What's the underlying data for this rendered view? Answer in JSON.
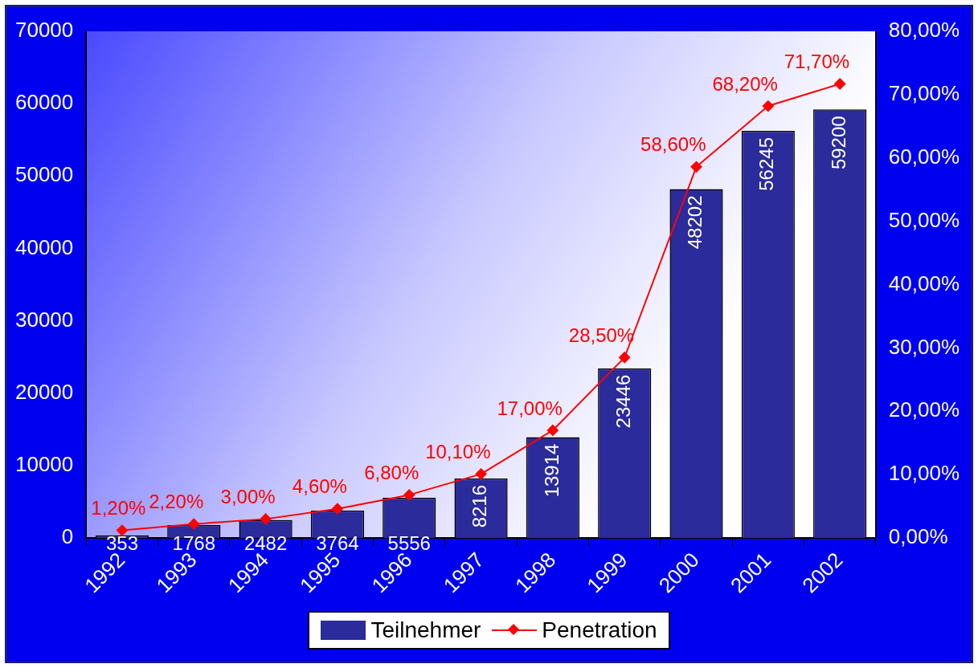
{
  "chart_data": {
    "type": "bar",
    "categories": [
      "1992",
      "1993",
      "1994",
      "1995",
      "1996",
      "1997",
      "1998",
      "1999",
      "2000",
      "2001",
      "2002"
    ],
    "series": [
      {
        "name": "Teilnehmer",
        "color": "#2b2b9c",
        "values": [
          353,
          1768,
          2482,
          3764,
          5556,
          8216,
          13914,
          23446,
          48202,
          56245,
          59200
        ],
        "value_labels": [
          "353",
          "1768",
          "2482",
          "3764",
          "5556",
          "8216",
          "13914",
          "23446",
          "48202",
          "56245",
          "59200"
        ]
      },
      {
        "name": "Penetration",
        "type": "line",
        "axis": "y2",
        "color": "#ff0000",
        "marker": "diamond",
        "values": [
          1.2,
          2.2,
          3.0,
          4.6,
          6.8,
          10.1,
          17.0,
          28.5,
          58.6,
          68.2,
          71.7
        ],
        "value_labels": [
          "1,20%",
          "2,20%",
          "3,00%",
          "4,60%",
          "6,80%",
          "10,10%",
          "17,00%",
          "28,50%",
          "58,60%",
          "68,20%",
          "71,70%"
        ]
      }
    ],
    "ylim": [
      0,
      70000
    ],
    "yticks": [
      0,
      10000,
      20000,
      30000,
      40000,
      50000,
      60000,
      70000
    ],
    "y2lim": [
      0,
      80
    ],
    "y2ticks": [
      {
        "value": 0,
        "label": "0,00%"
      },
      {
        "value": 10,
        "label": "10,00%"
      },
      {
        "value": 20,
        "label": "20,00%"
      },
      {
        "value": 30,
        "label": "30,00%"
      },
      {
        "value": 40,
        "label": "40,00%"
      },
      {
        "value": 50,
        "label": "50,00%"
      },
      {
        "value": 60,
        "label": "60,00%"
      },
      {
        "value": 70,
        "label": "70,00%"
      },
      {
        "value": 80,
        "label": "80,00%"
      }
    ],
    "grid": false,
    "legend": "bottom"
  }
}
